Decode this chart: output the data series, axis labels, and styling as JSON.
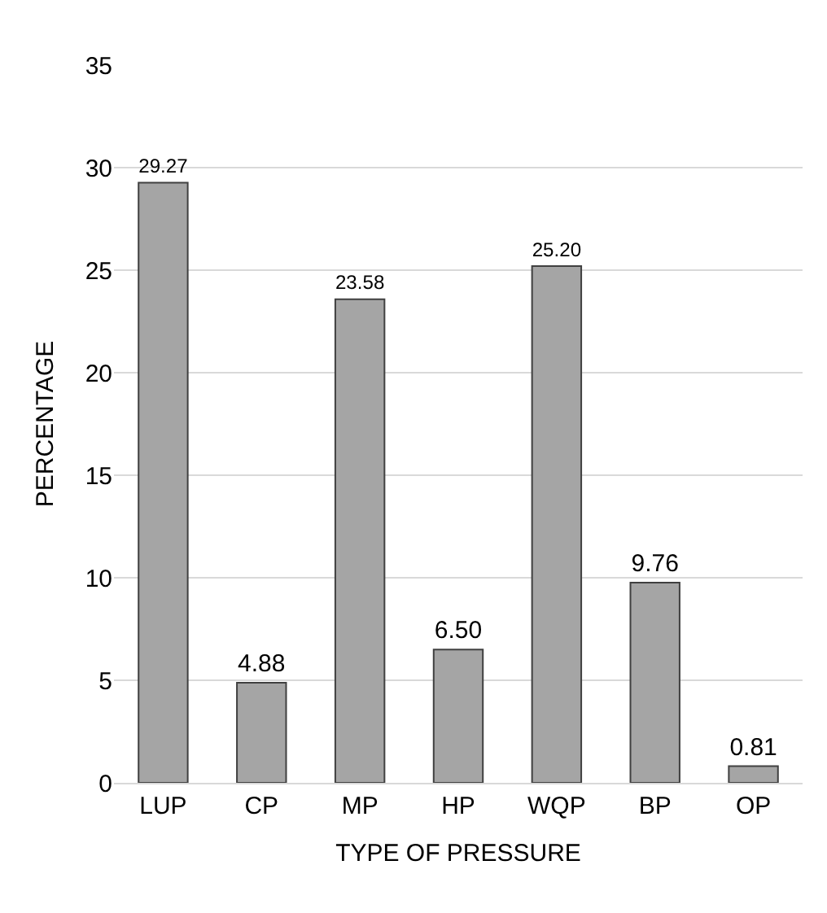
{
  "chart_data": {
    "type": "bar",
    "xlabel": "TYPE OF PRESSURE",
    "ylabel": "PERCENTAGE",
    "categories": [
      "LUP",
      "CP",
      "MP",
      "HP",
      "WQP",
      "BP",
      "OP"
    ],
    "values": [
      29.27,
      4.88,
      23.58,
      6.5,
      25.2,
      9.76,
      0.81
    ],
    "value_labels": [
      "29.27",
      "4.88",
      "23.58",
      "6.50",
      "25.20",
      "9.76",
      "0.81"
    ],
    "color": "#a5a5a5",
    "ylim": [
      0,
      35
    ],
    "yticks": [
      0,
      5,
      10,
      15,
      20,
      25,
      30,
      35
    ],
    "grid": "y",
    "legend": false
  }
}
